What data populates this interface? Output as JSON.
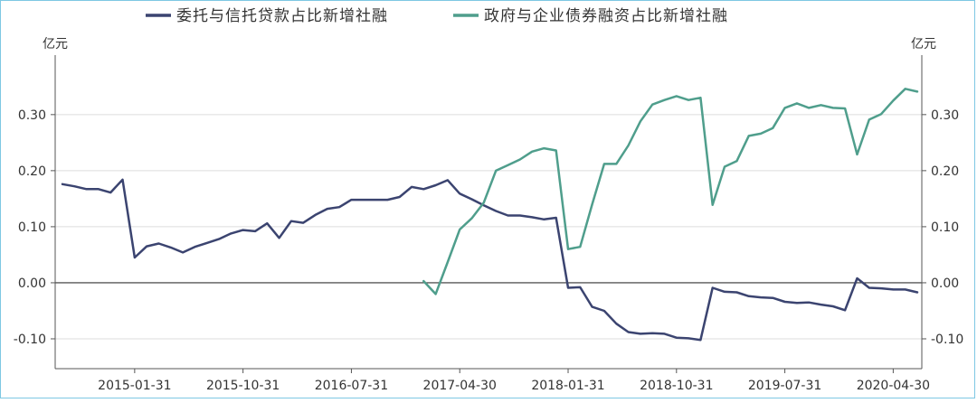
{
  "chart_data": {
    "type": "line",
    "left_unit": "亿元",
    "right_unit": "亿元",
    "ylim": [
      -0.15,
      0.39
    ],
    "y_ticks": [
      {
        "value": 0.3,
        "label": "0.30"
      },
      {
        "value": 0.2,
        "label": "0.20"
      },
      {
        "value": 0.1,
        "label": "0.10"
      },
      {
        "value": 0.0,
        "label": "0.00"
      },
      {
        "value": -0.1,
        "label": "-0.10"
      }
    ],
    "x_ticks": [
      {
        "index": 6,
        "label": "2015-01-31"
      },
      {
        "index": 15,
        "label": "2015-10-31"
      },
      {
        "index": 24,
        "label": "2016-07-31"
      },
      {
        "index": 33,
        "label": "2017-04-30"
      },
      {
        "index": 42,
        "label": "2018-01-31"
      },
      {
        "index": 51,
        "label": "2018-10-31"
      },
      {
        "index": 60,
        "label": "2019-07-31"
      },
      {
        "index": 69,
        "label": "2020-04-30"
      }
    ],
    "x_start": "2014-07-31",
    "x_end": "2020-05-31",
    "legend": "top",
    "grid": true,
    "series": [
      {
        "name": "委托与信托贷款占比新增社融",
        "color": "#3b4470",
        "values": [
          0.176,
          0.172,
          0.167,
          0.167,
          0.161,
          0.184,
          0.045,
          0.065,
          0.07,
          0.063,
          0.054,
          0.064,
          0.071,
          0.078,
          0.088,
          0.094,
          0.092,
          0.106,
          0.08,
          0.11,
          0.107,
          0.121,
          0.132,
          0.135,
          0.148,
          0.148,
          0.148,
          0.148,
          0.153,
          0.171,
          0.167,
          0.174,
          0.183,
          0.159,
          0.149,
          0.138,
          0.128,
          0.12,
          0.12,
          0.117,
          0.113,
          0.116,
          -0.009,
          -0.008,
          -0.043,
          -0.05,
          -0.073,
          -0.088,
          -0.091,
          -0.09,
          -0.091,
          -0.098,
          -0.099,
          -0.102,
          -0.009,
          -0.016,
          -0.017,
          -0.024,
          -0.026,
          -0.027,
          -0.034,
          -0.036,
          -0.035,
          -0.039,
          -0.042,
          -0.049,
          0.008,
          -0.009,
          -0.01,
          -0.012,
          -0.012,
          -0.017
        ]
      },
      {
        "name": "政府与企业债券融资占比新增社融",
        "color": "#4f9e8c",
        "values": [
          null,
          null,
          null,
          null,
          null,
          null,
          null,
          null,
          null,
          null,
          null,
          null,
          null,
          null,
          null,
          null,
          null,
          null,
          null,
          null,
          null,
          null,
          null,
          null,
          null,
          null,
          null,
          null,
          null,
          null,
          0.003,
          -0.02,
          0.037,
          0.095,
          0.115,
          0.143,
          0.2,
          0.21,
          0.22,
          0.234,
          0.24,
          0.236,
          0.06,
          0.064,
          0.14,
          0.212,
          0.212,
          0.245,
          0.288,
          0.318,
          0.326,
          0.333,
          0.326,
          0.33,
          0.139,
          0.207,
          0.217,
          0.262,
          0.266,
          0.276,
          0.312,
          0.32,
          0.312,
          0.317,
          0.312,
          0.311,
          0.229,
          0.291,
          0.301,
          0.325,
          0.346,
          0.341
        ]
      }
    ]
  }
}
